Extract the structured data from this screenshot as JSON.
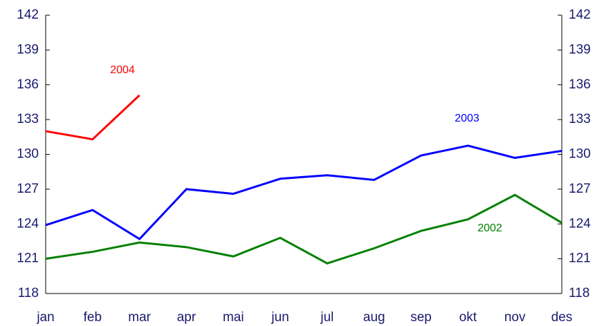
{
  "chart_data": {
    "type": "line",
    "categories": [
      "jan",
      "feb",
      "mar",
      "apr",
      "mai",
      "jun",
      "jul",
      "aug",
      "sep",
      "okt",
      "nov",
      "des"
    ],
    "series": [
      {
        "name": "2004",
        "color": "#ff0000",
        "values": [
          132.0,
          131.3,
          135.1,
          null,
          null,
          null,
          null,
          null,
          null,
          null,
          null,
          null
        ]
      },
      {
        "name": "2003",
        "color": "#0000ff",
        "values": [
          123.9,
          125.2,
          122.7,
          127.0,
          126.6,
          127.9,
          128.2,
          127.8,
          129.9,
          130.75,
          129.7,
          130.3
        ]
      },
      {
        "name": "2002",
        "color": "#008000",
        "values": [
          121.0,
          121.6,
          122.4,
          122.0,
          121.2,
          122.8,
          120.6,
          121.9,
          123.4,
          124.4,
          126.5,
          124.1
        ]
      }
    ],
    "ylim": [
      118,
      142
    ],
    "yticks": [
      118,
      121,
      124,
      127,
      130,
      133,
      136,
      139,
      142
    ],
    "y2lim": [
      118,
      142
    ],
    "y2ticks": [
      118,
      121,
      124,
      127,
      130,
      133,
      136,
      139,
      142
    ]
  }
}
